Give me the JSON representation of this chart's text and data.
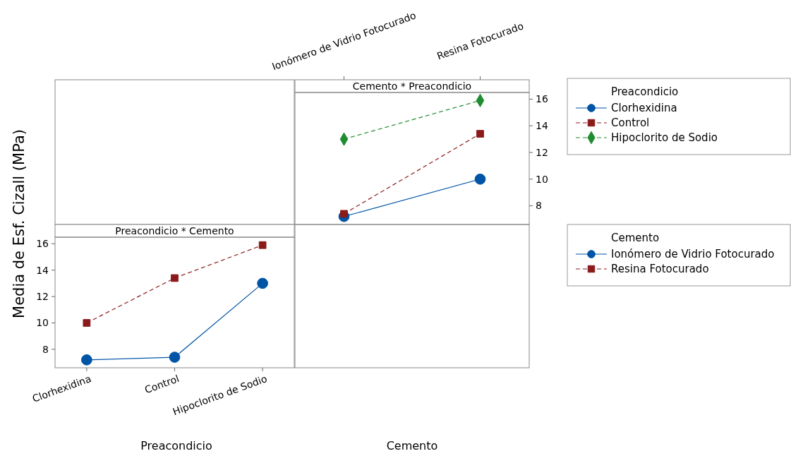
{
  "chart_data": [
    {
      "type": "line",
      "title": "Cemento * Preacondicio",
      "xlabel": "Cemento",
      "legend_title": "Preacondicio",
      "legend": "right",
      "categories": [
        "Ionómero de Vidrio Fotocurado",
        "Resina Fotocurado"
      ],
      "y2lim": [
        6.6,
        16.5
      ],
      "y2ticks": [
        8,
        10,
        12,
        14,
        16
      ],
      "series": [
        {
          "name": "Clorhexidina",
          "color": "#0054a6",
          "values": [
            7.2,
            10.0
          ],
          "axis": "y2",
          "marker": "circle",
          "line_style": "solid"
        },
        {
          "name": "Control",
          "color": "#8b1a1a",
          "values": [
            7.4,
            13.4
          ],
          "axis": "y2",
          "marker": "square",
          "line_style": "dashed"
        },
        {
          "name": "Hipoclorito de Sodio",
          "color": "#1e8c2f",
          "values": [
            13.0,
            15.9
          ],
          "axis": "y2",
          "marker": "diamond",
          "line_style": "dashed"
        }
      ]
    },
    {
      "type": "line",
      "title": "Preacondicio * Cemento",
      "xlabel": "Preacondicio",
      "ylabel": "Media de Esf. Cizall (MPa)",
      "legend_title": "Cemento",
      "legend": "right",
      "categories": [
        "Clorhexidina",
        "Control",
        "Hipoclorito de Sodio"
      ],
      "ylim": [
        6.6,
        16.5
      ],
      "yticks": [
        8,
        10,
        12,
        14,
        16
      ],
      "series": [
        {
          "name": "Ionómero de Vidrio Fotocurado",
          "color": "#0054a6",
          "values": [
            7.2,
            7.4,
            13.0
          ],
          "marker": "circle",
          "line_style": "solid"
        },
        {
          "name": "Resina Fotocurado",
          "color": "#8b1a1a",
          "values": [
            10.0,
            13.4,
            15.9
          ],
          "marker": "square",
          "line_style": "dashed"
        }
      ]
    }
  ]
}
